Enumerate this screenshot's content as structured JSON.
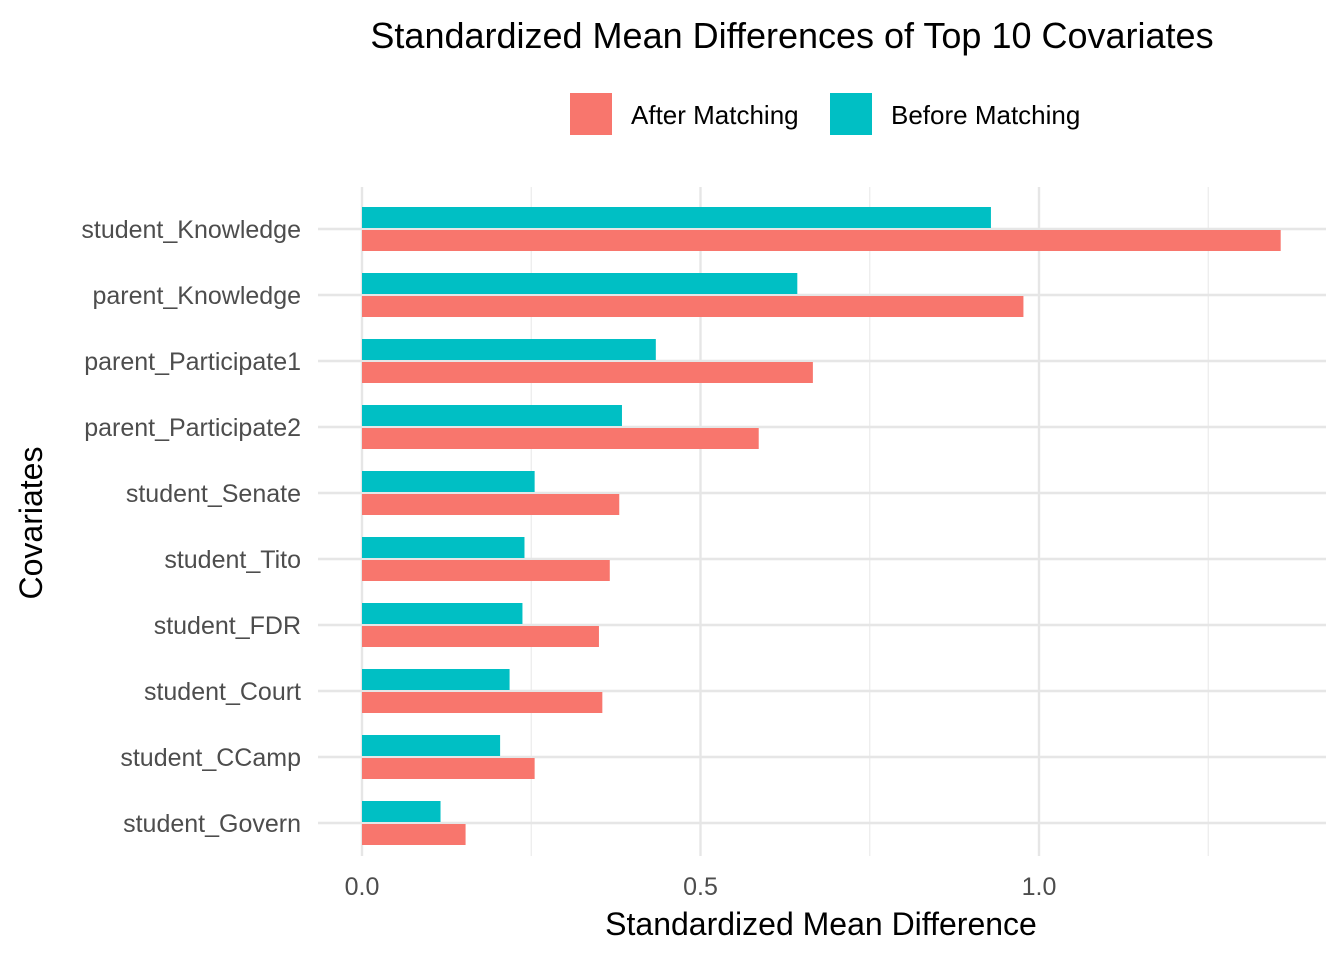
{
  "chart_data": {
    "type": "bar",
    "orientation": "horizontal",
    "title": "Standardized Mean Differences of Top 10 Covariates",
    "xlabel": "Standardized Mean Difference",
    "ylabel": "Covariates",
    "xlim": [
      -0.05,
      1.42
    ],
    "x_ticks": [
      "0.0",
      "0.5",
      "1.0"
    ],
    "x_tick_values": [
      0,
      0.5,
      1.0
    ],
    "grid": true,
    "legend_position": "top",
    "categories": [
      "student_Knowledge",
      "parent_Knowledge",
      "parent_Participate1",
      "parent_Participate2",
      "student_Senate",
      "student_Tito",
      "student_FDR",
      "student_Court",
      "student_CCamp",
      "student_Govern"
    ],
    "series": [
      {
        "name": "After Matching",
        "color": "#F8766D",
        "values": [
          1.357,
          0.977,
          0.666,
          0.586,
          0.38,
          0.366,
          0.35,
          0.355,
          0.255,
          0.153
        ]
      },
      {
        "name": "Before Matching",
        "color": "#00BFC4",
        "values": [
          0.929,
          0.643,
          0.434,
          0.384,
          0.255,
          0.24,
          0.237,
          0.218,
          0.204,
          0.116
        ]
      }
    ]
  }
}
